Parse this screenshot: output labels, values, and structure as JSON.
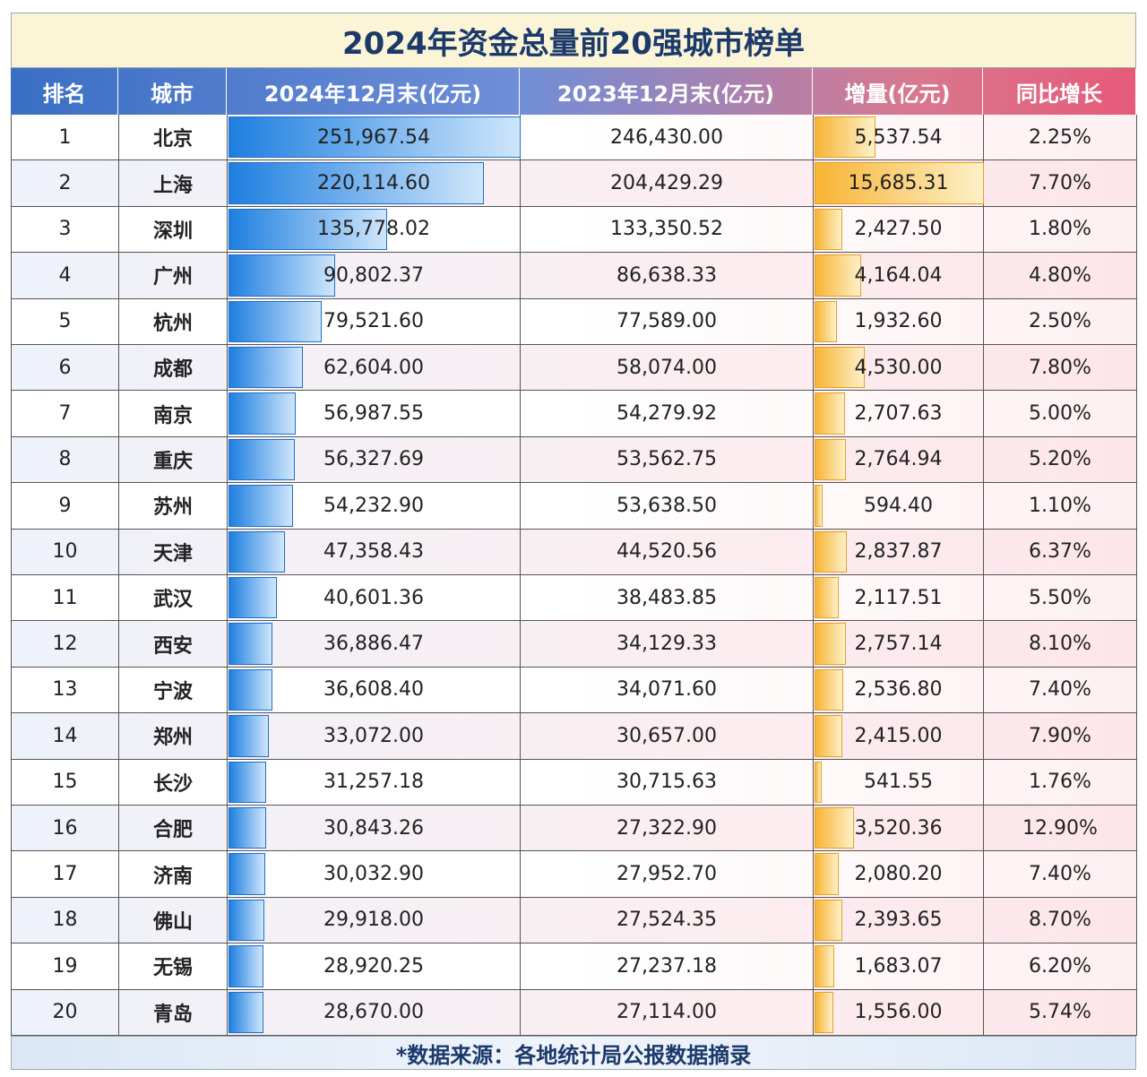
{
  "header": {
    "title": "2024年资金总量前20强城市榜单"
  },
  "table": {
    "columns": [
      "排名",
      "城市",
      "2024年12月末(亿元)",
      "2023年12月末(亿元)",
      "增量(亿元)",
      "同比增长"
    ],
    "rows": [
      [
        "1",
        "北京",
        "251,967.54",
        "246,430.00",
        "5,537.54",
        "2.25%"
      ],
      [
        "2",
        "上海",
        "220,114.60",
        "204,429.29",
        "15,685.31",
        "7.70%"
      ],
      [
        "3",
        "深圳",
        "135,778.02",
        "133,350.52",
        "2,427.50",
        "1.80%"
      ],
      [
        "4",
        "广州",
        "90,802.37",
        "86,638.33",
        "4,164.04",
        "4.80%"
      ],
      [
        "5",
        "杭州",
        "79,521.60",
        "77,589.00",
        "1,932.60",
        "2.50%"
      ],
      [
        "6",
        "成都",
        "62,604.00",
        "58,074.00",
        "4,530.00",
        "7.80%"
      ],
      [
        "7",
        "南京",
        "56,987.55",
        "54,279.92",
        "2,707.63",
        "5.00%"
      ],
      [
        "8",
        "重庆",
        "56,327.69",
        "53,562.75",
        "2,764.94",
        "5.20%"
      ],
      [
        "9",
        "苏州",
        "54,232.90",
        "53,638.50",
        "594.40",
        "1.10%"
      ],
      [
        "10",
        "天津",
        "47,358.43",
        "44,520.56",
        "2,837.87",
        "6.37%"
      ],
      [
        "11",
        "武汉",
        "40,601.36",
        "38,483.85",
        "2,117.51",
        "5.50%"
      ],
      [
        "12",
        "西安",
        "36,886.47",
        "34,129.33",
        "2,757.14",
        "8.10%"
      ],
      [
        "13",
        "宁波",
        "36,608.40",
        "34,071.60",
        "2,536.80",
        "7.40%"
      ],
      [
        "14",
        "郑州",
        "33,072.00",
        "30,657.00",
        "2,415.00",
        "7.90%"
      ],
      [
        "15",
        "长沙",
        "31,257.18",
        "30,715.63",
        "541.55",
        "1.76%"
      ],
      [
        "16",
        "合肥",
        "30,843.26",
        "27,322.90",
        "3,520.36",
        "12.90%"
      ],
      [
        "17",
        "济南",
        "30,032.90",
        "27,952.70",
        "2,080.20",
        "7.40%"
      ],
      [
        "18",
        "佛山",
        "29,918.00",
        "27,524.35",
        "2,393.65",
        "8.70%"
      ],
      [
        "19",
        "无锡",
        "28,920.25",
        "27,237.18",
        "1,683.07",
        "6.20%"
      ],
      [
        "20",
        "青岛",
        "28,670.00",
        "27,114.00",
        "1,556.00",
        "5.74%"
      ]
    ]
  },
  "footer": {
    "note": "*数据来源：各地统计局公报数据摘录"
  }
}
